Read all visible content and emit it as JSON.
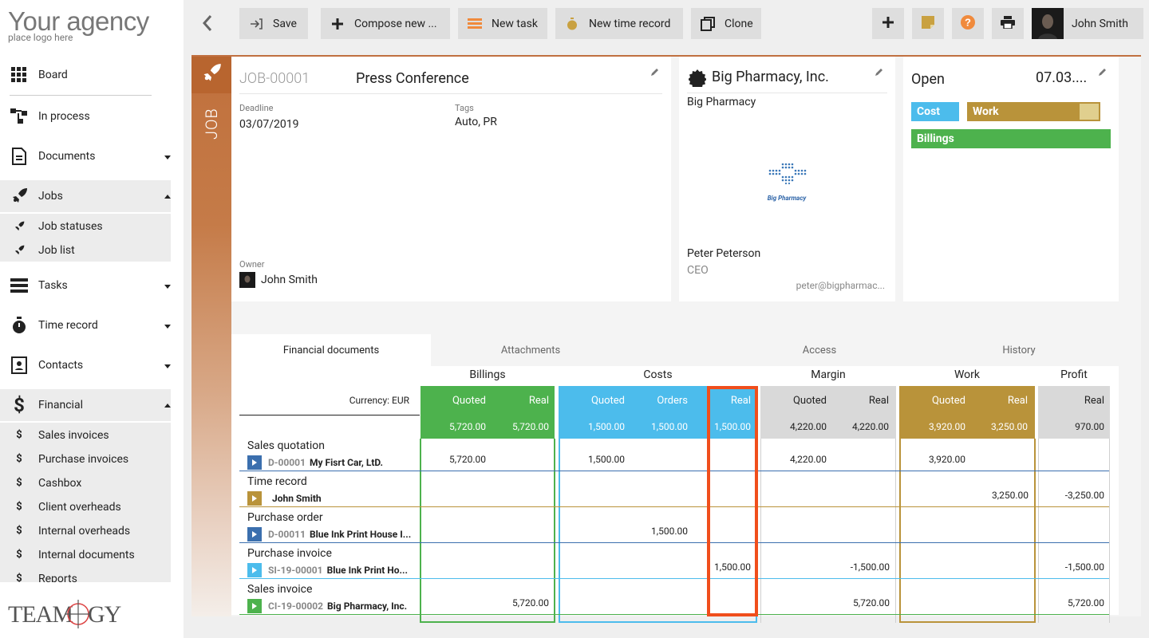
{
  "sidebar": {
    "logo_main": "Your agency",
    "logo_sub": "place logo here",
    "items": [
      {
        "label": "Board"
      },
      {
        "label": "In process"
      },
      {
        "label": "Documents"
      },
      {
        "label": "Jobs"
      },
      {
        "label": "Tasks"
      },
      {
        "label": "Time record"
      },
      {
        "label": "Contacts"
      },
      {
        "label": "Financial"
      }
    ],
    "jobs_sub": [
      "Job statuses",
      "Job list"
    ],
    "financial_sub": [
      "Sales invoices",
      "Purchase invoices",
      "Cashbox",
      "Client overheads",
      "Internal overheads",
      "Internal documents",
      "Reports"
    ],
    "footer_logo": "TEAMOGY"
  },
  "toolbar": {
    "save": "Save",
    "compose": "Compose new ...",
    "new_task": "New task",
    "new_time_record": "New time record",
    "clone": "Clone",
    "user_name": "John Smith"
  },
  "job": {
    "strip_label": "JOB",
    "number": "JOB-00001",
    "title": "Press Conference",
    "deadline_label": "Deadline",
    "deadline": "03/07/2019",
    "tags_label": "Tags",
    "tags": "Auto, PR",
    "owner_label": "Owner",
    "owner": "John Smith"
  },
  "client": {
    "name": "Big Pharmacy, Inc.",
    "short": "Big Pharmacy",
    "logo_text": "Big Pharmacy",
    "contact_name": "Peter Peterson",
    "contact_role": "CEO",
    "contact_email": "peter@bigpharmac..."
  },
  "status": {
    "state": "Open",
    "date": "07.03....",
    "cost": "Cost",
    "work": "Work",
    "billings": "Billings",
    "work_progress": 0.85
  },
  "tabs": [
    "Financial documents",
    "Attachments",
    "Access",
    "History"
  ],
  "financial": {
    "currency": "Currency: EUR",
    "groups": [
      "Billings",
      "Costs",
      "Margin",
      "Work",
      "Profit"
    ],
    "sub_headers": {
      "billings": [
        "Quoted",
        "Real"
      ],
      "costs": [
        "Quoted",
        "Orders",
        "Real"
      ],
      "margin": [
        "Quoted",
        "Real"
      ],
      "work": [
        "Quoted",
        "Real"
      ],
      "profit": [
        "Real"
      ]
    },
    "totals": {
      "billings": [
        "5,720.00",
        "5,720.00"
      ],
      "costs": [
        "1,500.00",
        "1,500.00",
        "1,500.00"
      ],
      "margin": [
        "4,220.00",
        "4,220.00"
      ],
      "work": [
        "3,920.00",
        "3,250.00"
      ],
      "profit": [
        "970.00"
      ]
    },
    "rows": [
      {
        "label": "Sales quotation",
        "doc_num": "D-00001",
        "doc_name": "My Fisrt Car, LtD.",
        "vals": [
          "5,720.00",
          "1,500.00",
          "4,220.00",
          "3,920.00"
        ]
      },
      {
        "label": "Time record",
        "doc_num": "",
        "doc_name": "John Smith",
        "vals": [
          "3,250.00",
          "-3,250.00"
        ]
      },
      {
        "label": "Purchase order",
        "doc_num": "D-00011",
        "doc_name": "Blue Ink Print House I...",
        "vals": [
          "1,500.00"
        ]
      },
      {
        "label": "Purchase invoice",
        "doc_num": "SI-19-00001",
        "doc_name": "Blue Ink Print Ho...",
        "vals": [
          "1,500.00",
          "-1,500.00",
          "-1,500.00"
        ]
      },
      {
        "label": "Sales invoice",
        "doc_num": "CI-19-00002",
        "doc_name": "Big Pharmacy, Inc.",
        "vals": [
          "5,720.00",
          "5,720.00",
          "5,720.00"
        ]
      }
    ]
  },
  "colors": {
    "job_orange": "#c0703c",
    "billings_green": "#4db24d",
    "costs_blue": "#4cbcec",
    "margin_gray": "#d9d9d9",
    "work_gold": "#b9933a",
    "highlight_red": "#f04e1c"
  }
}
